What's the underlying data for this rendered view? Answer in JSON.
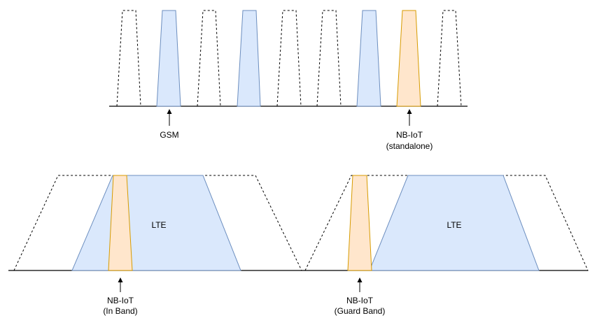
{
  "colors": {
    "gsm_fill": "#dae8fc",
    "gsm_stroke": "#6c8ebf",
    "nbiot_fill": "#ffe6cc",
    "nbiot_stroke": "#d79b00",
    "dashed_outline": "#000000",
    "baseline": "#000000"
  },
  "labels": {
    "gsm": "GSM",
    "nbiot_standalone_line1": "NB-IoT",
    "nbiot_standalone_line2": "(standalone)",
    "lte_inband": "LTE",
    "lte_guardband": "LTE",
    "nbiot_inband_line1": "NB-IoT",
    "nbiot_inband_line2": "(In Band)",
    "nbiot_guardband_line1": "NB-IoT",
    "nbiot_guardband_line2": "(Guard Band)"
  }
}
